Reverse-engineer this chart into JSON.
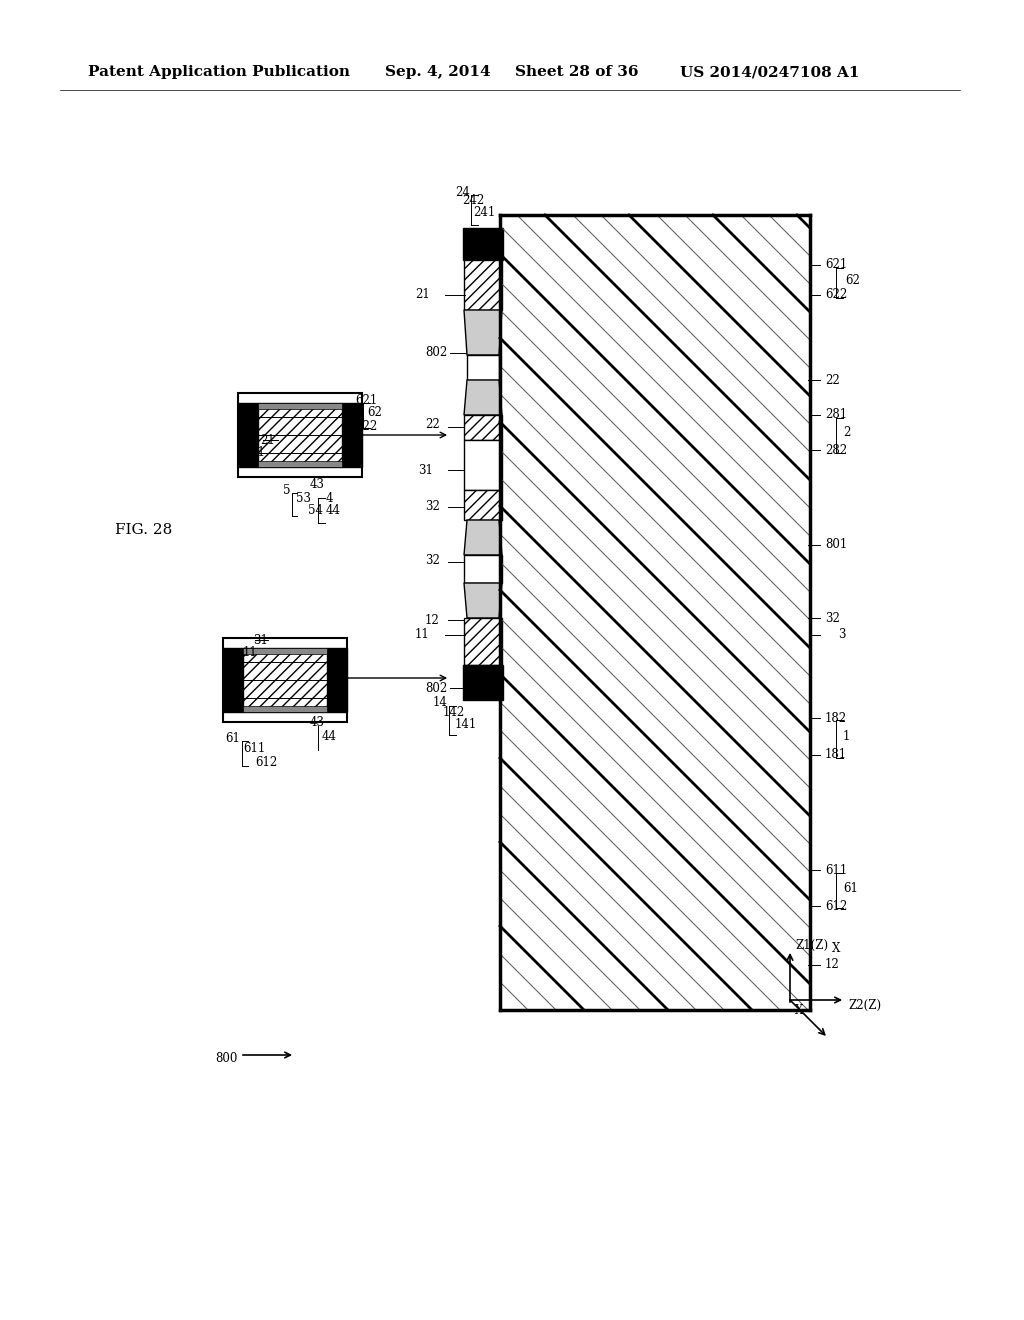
{
  "bg_color": "#ffffff",
  "header_text": "Patent Application Publication",
  "header_date": "Sep. 4, 2014",
  "header_sheet": "Sheet 28 of 36",
  "header_patent": "US 2014/0247108 A1",
  "title_fontsize": 11,
  "label_fontsize": 9,
  "small_label_fontsize": 8.5
}
